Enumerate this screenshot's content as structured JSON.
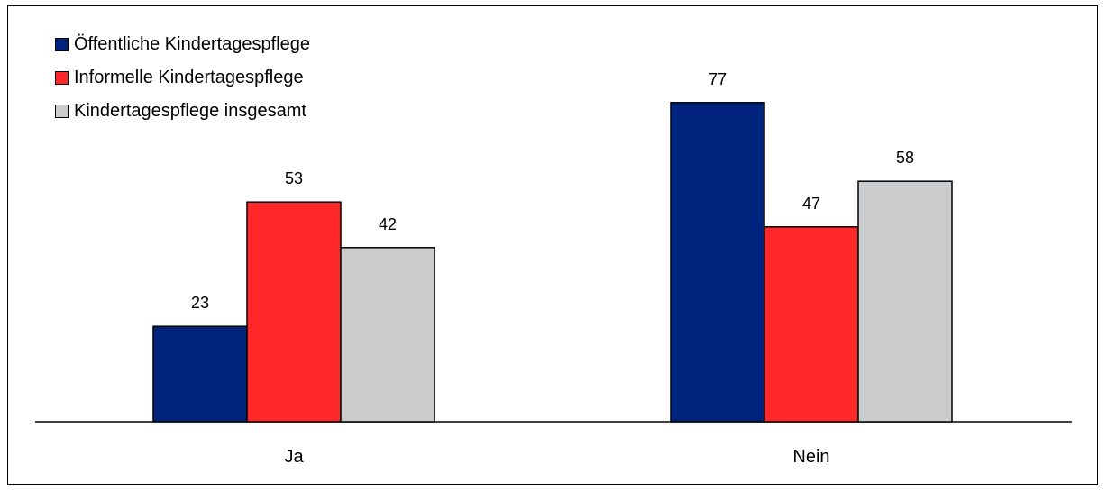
{
  "chart_data": {
    "type": "bar",
    "categories": [
      "Ja",
      "Nein"
    ],
    "series": [
      {
        "name": "Öffentliche Kindertagespflege",
        "values": [
          23,
          77
        ],
        "color": "#00247D"
      },
      {
        "name": "Informelle Kindertagespflege",
        "values": [
          53,
          47
        ],
        "color": "#FF2828"
      },
      {
        "name": "Kindertagespflege insgesamt",
        "values": [
          42,
          58
        ],
        "color": "#C9CBCD"
      }
    ],
    "title": "",
    "xlabel": "",
    "ylabel": "",
    "ylim": [
      0,
      100
    ],
    "grid": false,
    "legend": "top-left"
  }
}
